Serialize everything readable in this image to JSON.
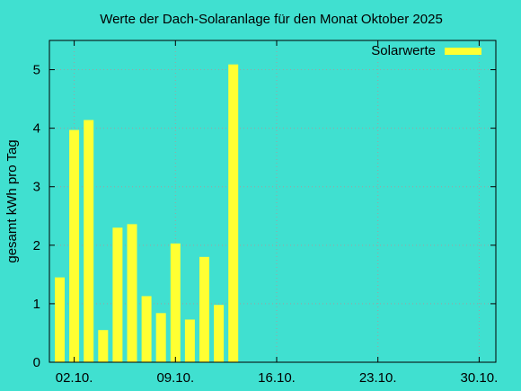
{
  "chart_data": {
    "type": "bar",
    "title": "Werte der Dach-Solaranlage für den Monat Oktober 2025",
    "ylabel": "gesamt kWh pro Tag",
    "xlabel": "",
    "ylim": [
      0,
      5.5
    ],
    "yticks": [
      0,
      1,
      2,
      3,
      4,
      5
    ],
    "xlim": [
      "2025-10-01",
      "2025-10-31"
    ],
    "xticks": [
      "02.10.",
      "09.10.",
      "16.10.",
      "23.10.",
      "30.10."
    ],
    "grid": true,
    "legend_position": "top-right",
    "colors": {
      "background": "#40e0d0",
      "bar": "#ffff33",
      "grid": "#a0a0a0",
      "axis": "#000000"
    },
    "series": [
      {
        "name": "Solarwerte",
        "points": [
          {
            "date": "2025-10-01",
            "value": 1.45
          },
          {
            "date": "2025-10-02",
            "value": 3.97
          },
          {
            "date": "2025-10-03",
            "value": 4.14
          },
          {
            "date": "2025-10-04",
            "value": 0.55
          },
          {
            "date": "2025-10-05",
            "value": 2.3
          },
          {
            "date": "2025-10-06",
            "value": 2.36
          },
          {
            "date": "2025-10-07",
            "value": 1.13
          },
          {
            "date": "2025-10-08",
            "value": 0.84
          },
          {
            "date": "2025-10-09",
            "value": 2.03
          },
          {
            "date": "2025-10-10",
            "value": 0.73
          },
          {
            "date": "2025-10-11",
            "value": 1.8
          },
          {
            "date": "2025-10-12",
            "value": 0.98
          },
          {
            "date": "2025-10-13",
            "value": 5.09
          }
        ]
      }
    ]
  }
}
